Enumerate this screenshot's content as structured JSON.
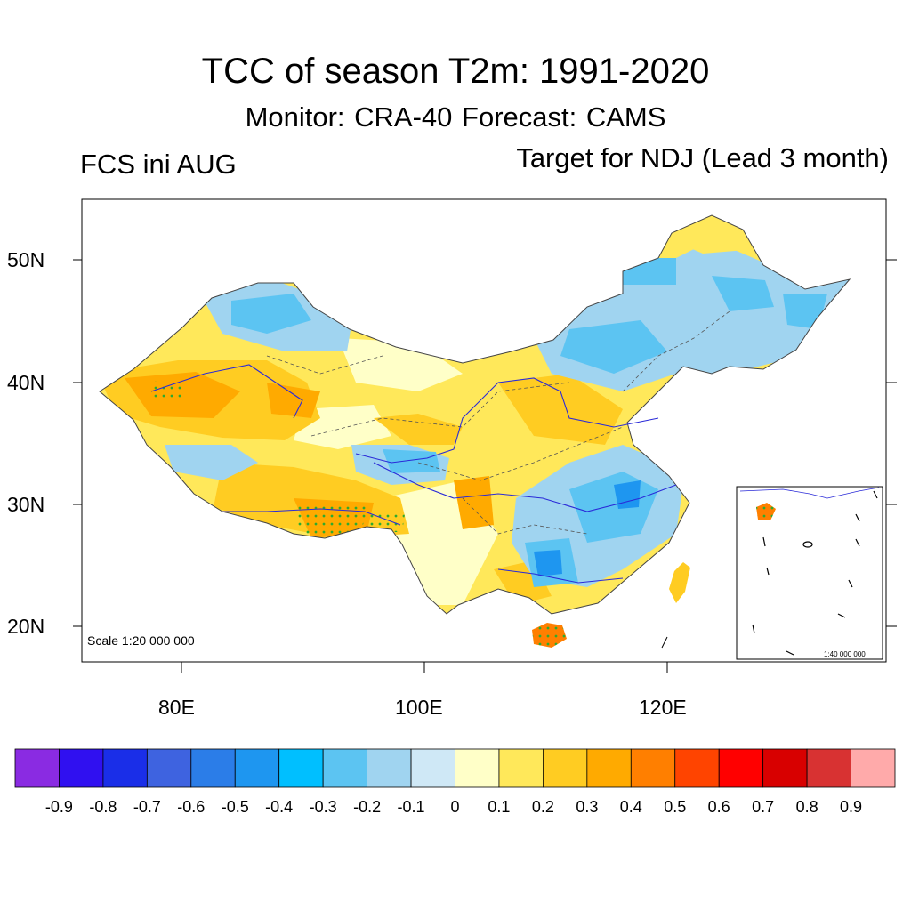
{
  "title": "TCC of season T2m: 1991-2020",
  "subtitle": "Monitor: CRA-40   Forecast: CAMS",
  "left_label": "FCS ini AUG",
  "right_label": "Target for NDJ (Lead 3 month)",
  "scale_main": "Scale 1:20 000 000",
  "scale_inset": "1:40 000 000",
  "lat_ticks": [
    "50N",
    "40N",
    "30N",
    "20N"
  ],
  "lon_ticks": [
    "80E",
    "100E",
    "120E"
  ],
  "colorbar": {
    "colors": [
      "#8a2be2",
      "#3010f0",
      "#1a2ee8",
      "#3e63e0",
      "#2b7de8",
      "#1e96f0",
      "#00bfff",
      "#5cc4f2",
      "#a0d4f0",
      "#cfe8f6",
      "#ffffc8",
      "#ffe85a",
      "#ffcc22",
      "#ffaa00",
      "#ff7f00",
      "#ff4400",
      "#ff0000",
      "#d80000",
      "#d83232",
      "#ffaaaa"
    ],
    "labels": [
      "-0.9",
      "-0.8",
      "-0.7",
      "-0.6",
      "-0.5",
      "-0.4",
      "-0.3",
      "-0.2",
      "-0.1",
      "0",
      "0.1",
      "0.2",
      "0.3",
      "0.4",
      "0.5",
      "0.6",
      "0.7",
      "0.8",
      "0.9"
    ]
  }
}
